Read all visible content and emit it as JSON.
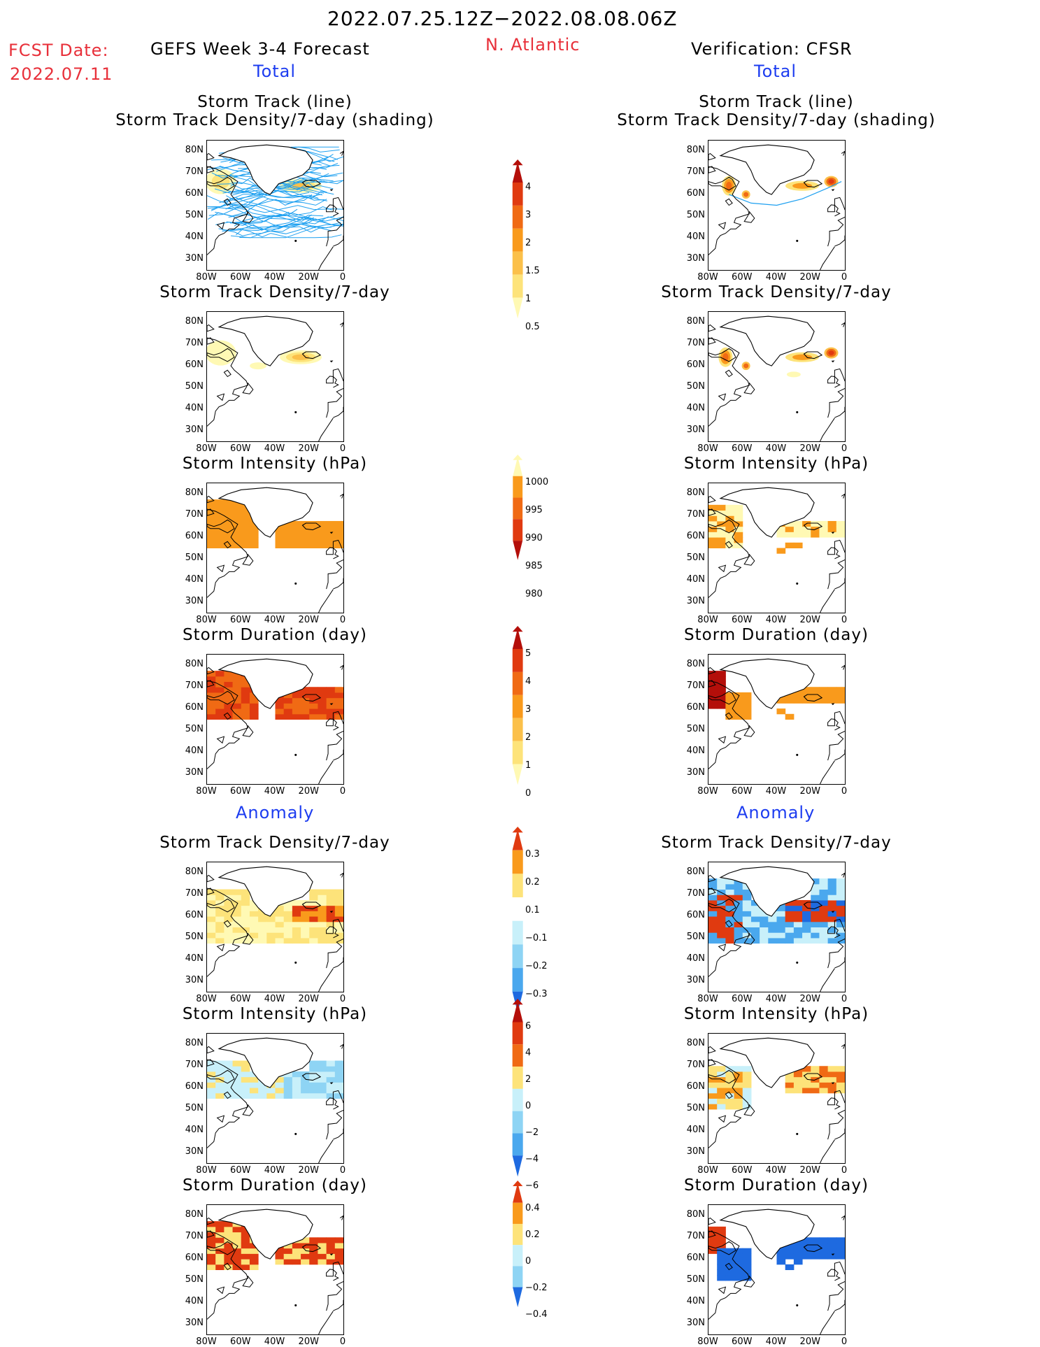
{
  "header": {
    "title": "2022.07.25.12Z−2022.08.08.06Z",
    "fcst_label": "FCST Date:",
    "fcst_date": "2022.07.11",
    "left_title": "GEFS Week 3-4 Forecast",
    "region": "N. Atlantic",
    "right_title": "Verification: CFSR"
  },
  "sections": {
    "total": "Total",
    "anomaly": "Anomaly"
  },
  "panel_titles": {
    "track_line": "Storm Track (line)",
    "track_shading": "Storm Track Density/7-day (shading)",
    "density": "Storm Track Density/7-day",
    "intensity": "Storm Intensity (hPa)",
    "duration": "Storm Duration (day)"
  },
  "axes": {
    "lat_ticks": [
      "80N",
      "70N",
      "60N",
      "50N",
      "40N",
      "30N"
    ],
    "lon_ticks": [
      "80W",
      "60W",
      "40W",
      "20W",
      "0"
    ]
  },
  "colorbars": {
    "density_total": [
      "4",
      "3",
      "2",
      "1.5",
      "1",
      "0.5"
    ],
    "intensity_total": [
      "1000",
      "995",
      "990",
      "985",
      "980"
    ],
    "duration_total": [
      "5",
      "4",
      "3",
      "2",
      "1",
      "0"
    ],
    "density_anom": [
      "0.3",
      "0.2",
      "0.1",
      "−0.1",
      "−0.2",
      "−0.3"
    ],
    "intensity_anom": [
      "6",
      "4",
      "2",
      "0",
      "−2",
      "−4",
      "−6"
    ],
    "duration_anom": [
      "0.4",
      "0.2",
      "0",
      "−0.2",
      "−0.4"
    ]
  },
  "colors": {
    "title_red": "#e8303a",
    "section_blue": "#1c3cf0",
    "track_line": "#1ea0f0",
    "warm_scale": [
      "#fff9b4",
      "#fde37a",
      "#fbc04a",
      "#f99a1c",
      "#f06a14",
      "#e03a10",
      "#b40f0a"
    ],
    "cool_scale": [
      "#c8f0fa",
      "#8ed4f4",
      "#4aa8ee",
      "#1e6ae0"
    ]
  }
}
